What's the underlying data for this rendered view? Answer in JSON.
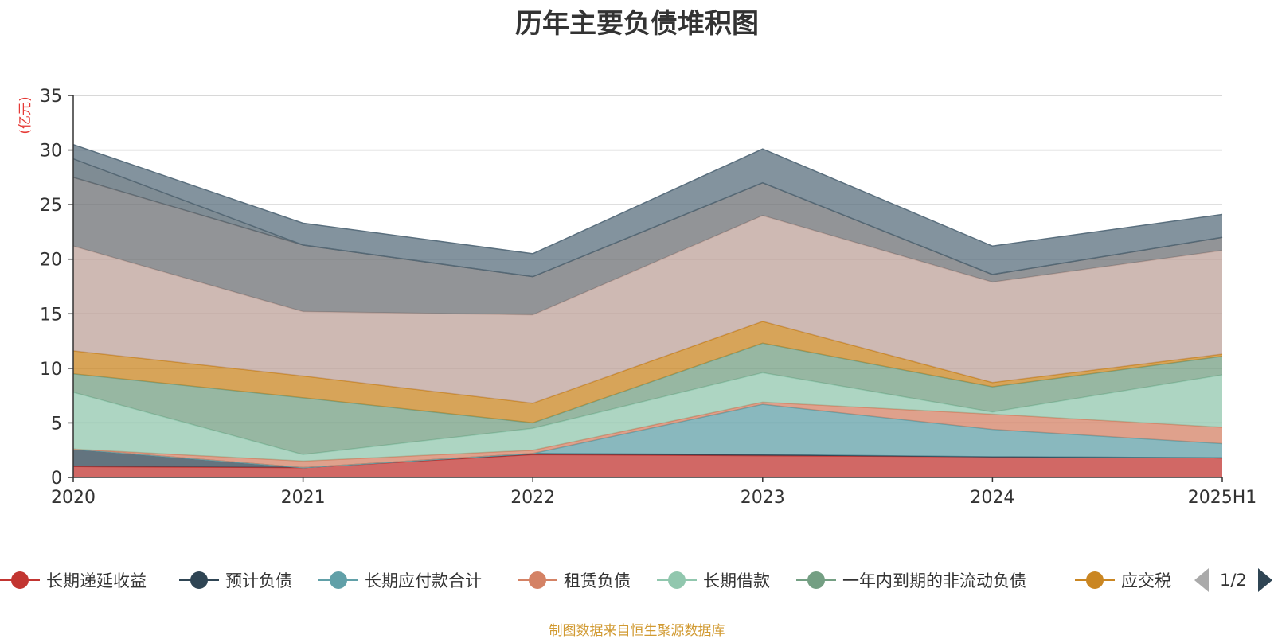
{
  "chart_data": {
    "type": "area",
    "stacked": true,
    "title": "历年主要负债堆积图",
    "ylabel": "(亿元)",
    "ylim": [
      0,
      35
    ],
    "yticks": [
      0,
      5,
      10,
      15,
      20,
      25,
      30,
      35
    ],
    "categories": [
      "2020",
      "2021",
      "2022",
      "2023",
      "2024",
      "2025H1"
    ],
    "grid": true,
    "series": [
      {
        "name": "长期递延收益",
        "color": "#c23531",
        "values": [
          1.0,
          0.9,
          2.1,
          2.0,
          1.9,
          1.8
        ]
      },
      {
        "name": "预计负债",
        "color": "#2f4554",
        "values": [
          1.6,
          0.0,
          0.1,
          0.1,
          0.0,
          0.0
        ]
      },
      {
        "name": "长期应付款合计",
        "color": "#61a0a8",
        "values": [
          0.0,
          0.0,
          0.0,
          4.6,
          2.5,
          1.3
        ]
      },
      {
        "name": "租赁负债",
        "color": "#d48265",
        "values": [
          0.0,
          0.6,
          0.3,
          0.2,
          1.4,
          1.5
        ]
      },
      {
        "name": "长期借款",
        "color": "#91c7ae",
        "values": [
          5.2,
          0.6,
          2.0,
          2.7,
          0.2,
          4.8
        ]
      },
      {
        "name": "一年内到期的非流动负债",
        "color": "#749f83",
        "values": [
          1.7,
          5.2,
          0.5,
          2.7,
          2.3,
          1.7
        ]
      },
      {
        "name": "应交税",
        "color": "#ca8622",
        "values": [
          2.1,
          2.0,
          1.8,
          2.0,
          0.4,
          0.2
        ]
      },
      {
        "values": [
          9.6,
          5.9,
          8.1,
          9.7,
          9.2,
          9.5
        ],
        "color": "#bda29a"
      },
      {
        "values": [
          6.3,
          6.1,
          3.5,
          3.0,
          0.7,
          1.2
        ],
        "color": "#6e7074"
      },
      {
        "values": [
          1.7,
          0.0,
          0.0,
          0.0,
          0.0,
          0.0
        ],
        "color": "#546570"
      },
      {
        "values": [
          1.3,
          2.0,
          2.1,
          3.1,
          2.6,
          2.1
        ],
        "color": "#5a6f7e"
      }
    ]
  },
  "legend": {
    "page_text": "1/2"
  },
  "source_note": "制图数据来自恒生聚源数据库"
}
